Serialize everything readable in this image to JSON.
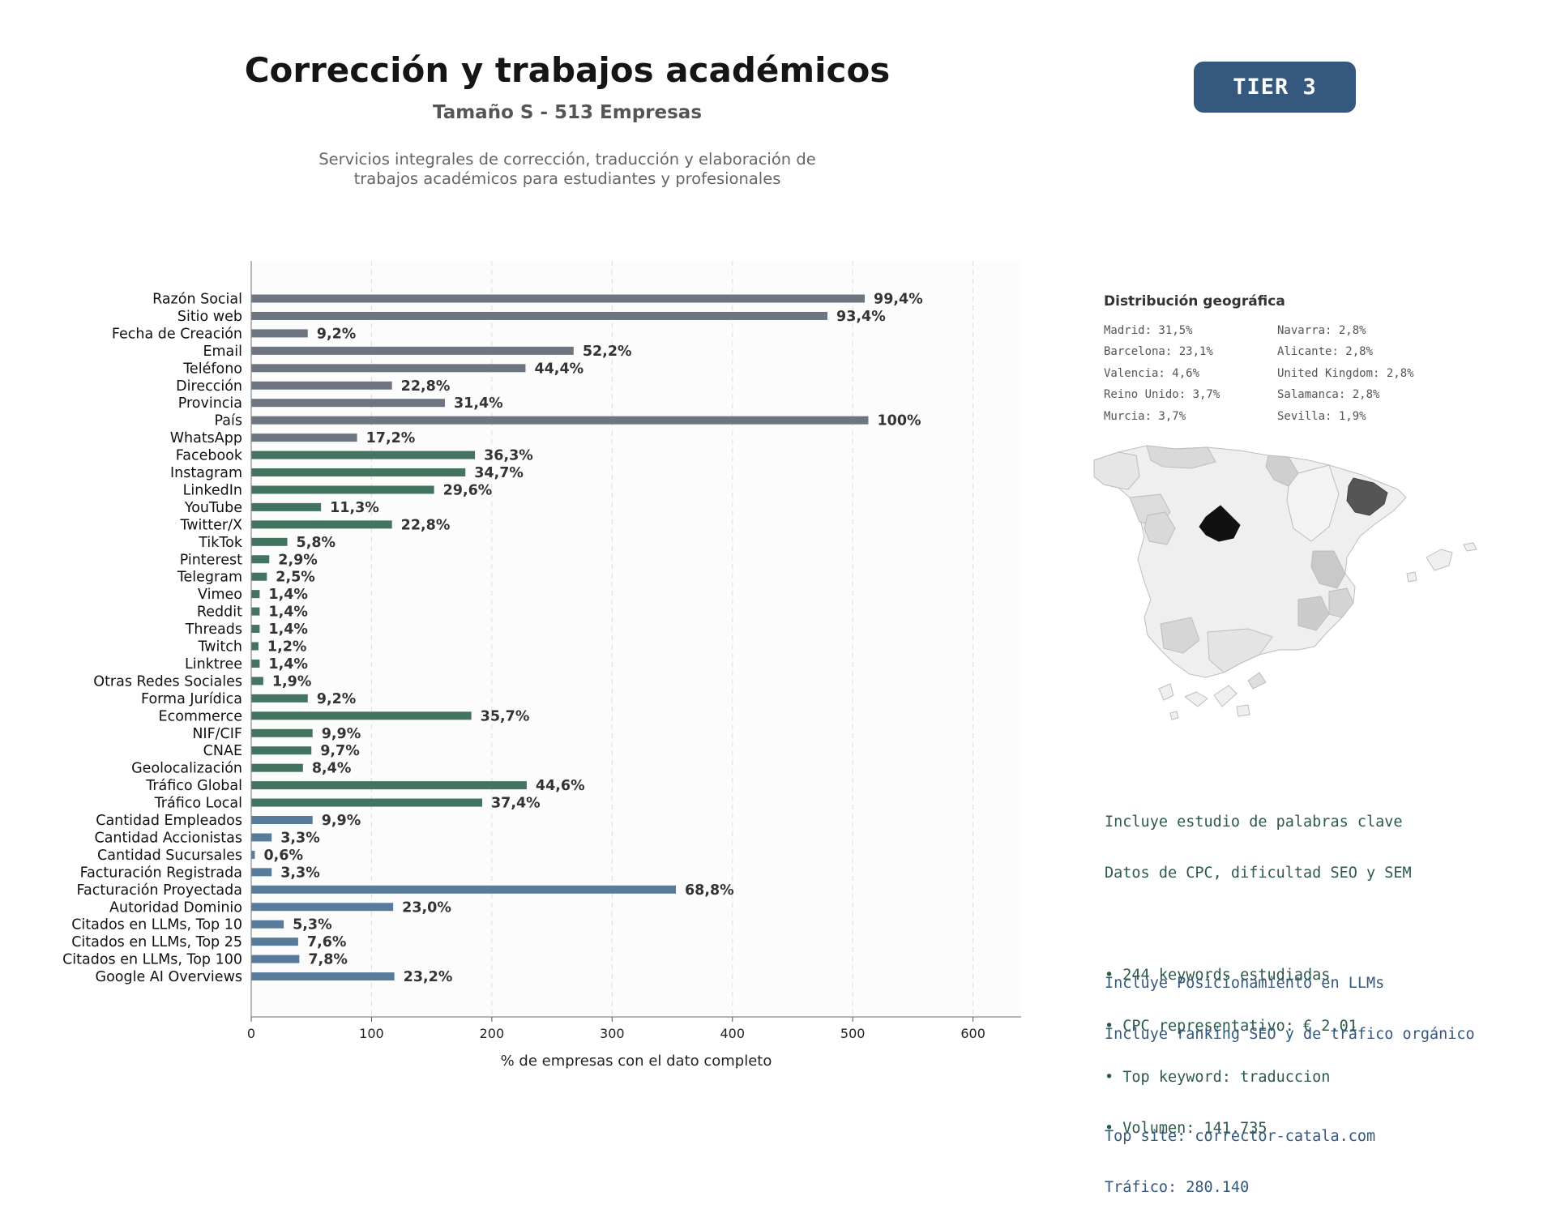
{
  "header": {
    "title": "Corrección y trabajos académicos",
    "subtitle": "Tamaño S - 513 Empresas",
    "description_line1": "Servicios integrales de corrección, traducción y elaboración de",
    "description_line2": "trabajos académicos para estudiantes y profesionales",
    "tier": "TIER 3"
  },
  "colors": {
    "gray": "#6d7680",
    "green": "#427460",
    "blue": "#587b9b",
    "label": "#333333"
  },
  "chart_data": {
    "type": "bar",
    "orientation": "horizontal",
    "xlabel": "% de empresas con el dato completo",
    "xlim": [
      0,
      640
    ],
    "xticks": [
      0,
      100,
      200,
      300,
      400,
      500,
      600
    ],
    "grid": "vertical dashed",
    "categories": [
      "Razón Social",
      "Sitio web",
      "Fecha de Creación",
      "Email",
      "Teléfono",
      "Dirección",
      "Provincia",
      "País",
      "WhatsApp",
      "Facebook",
      "Instagram",
      "LinkedIn",
      "YouTube",
      "Twitter/X",
      "TikTok",
      "Pinterest",
      "Telegram",
      "Vimeo",
      "Reddit",
      "Threads",
      "Twitch",
      "Linktree",
      "Otras Redes Sociales",
      "Forma Jurídica",
      "Ecommerce",
      "NIF/CIF",
      "CNAE",
      "Geolocalización",
      "Tráfico Global",
      "Tráfico Local",
      "Cantidad Empleados",
      "Cantidad Accionistas",
      "Cantidad Sucursales",
      "Facturación Registrada",
      "Facturación Proyectada",
      "Autoridad Dominio",
      "Citados en LLMs, Top 10",
      "Citados en LLMs, Top 25",
      "Citados en LLMs, Top 100",
      "Google AI Overviews"
    ],
    "values": [
      510,
      479,
      47,
      268,
      228,
      117,
      161,
      513,
      88,
      186,
      178,
      152,
      58,
      117,
      30,
      15,
      13,
      7,
      7,
      7,
      6,
      7,
      10,
      47,
      183,
      51,
      50,
      43,
      229,
      192,
      51,
      17,
      3,
      17,
      353,
      118,
      27,
      39,
      40,
      119
    ],
    "labels": [
      "99,4%",
      "93,4%",
      "9,2%",
      "52,2%",
      "44,4%",
      "22,8%",
      "31,4%",
      "100%",
      "17,2%",
      "36,3%",
      "34,7%",
      "29,6%",
      "11,3%",
      "22,8%",
      "5,8%",
      "2,9%",
      "2,5%",
      "1,4%",
      "1,4%",
      "1,4%",
      "1,2%",
      "1,4%",
      "1,9%",
      "9,2%",
      "35,7%",
      "9,9%",
      "9,7%",
      "8,4%",
      "44,6%",
      "37,4%",
      "9,9%",
      "3,3%",
      "0,6%",
      "3,3%",
      "68,8%",
      "23,0%",
      "5,3%",
      "7,6%",
      "7,8%",
      "23,2%"
    ],
    "groups": [
      "gray",
      "gray",
      "gray",
      "gray",
      "gray",
      "gray",
      "gray",
      "gray",
      "gray",
      "green",
      "green",
      "green",
      "green",
      "green",
      "green",
      "green",
      "green",
      "green",
      "green",
      "green",
      "green",
      "green",
      "green",
      "green",
      "green",
      "green",
      "green",
      "green",
      "green",
      "green",
      "blue",
      "blue",
      "blue",
      "blue",
      "blue",
      "blue",
      "blue",
      "blue",
      "blue",
      "blue"
    ]
  },
  "geo": {
    "title": "Distribución geográfica",
    "left": [
      "Madrid: 31,5%",
      "Barcelona: 23,1%",
      "Valencia: 4,6%",
      "Reino Unido: 3,7%",
      "Murcia: 3,7%"
    ],
    "right": [
      "Navarra: 2,8%",
      "Alicante: 2,8%",
      "United Kingdom: 2,8%",
      "Salamanca: 2,8%",
      "Sevilla: 1,9%"
    ]
  },
  "seo": {
    "line1": "Incluye estudio de palabras clave",
    "line2": "Datos de CPC, dificultad SEO y SEM",
    "bullet1": "• 244 keywords estudiadas",
    "bullet2": "• CPC representativo: € 2.01",
    "bullet3": "• Top keyword: traduccion",
    "bullet4": "• Volumen: 141.735"
  },
  "llm": {
    "line1": "Incluye Posicionamiento en LLMs",
    "line2": "Incluye ranking SEO y de tráfico orgánico",
    "line3": "Top site: corrector-catala.com",
    "line4": "Tráfico: 280.140"
  }
}
